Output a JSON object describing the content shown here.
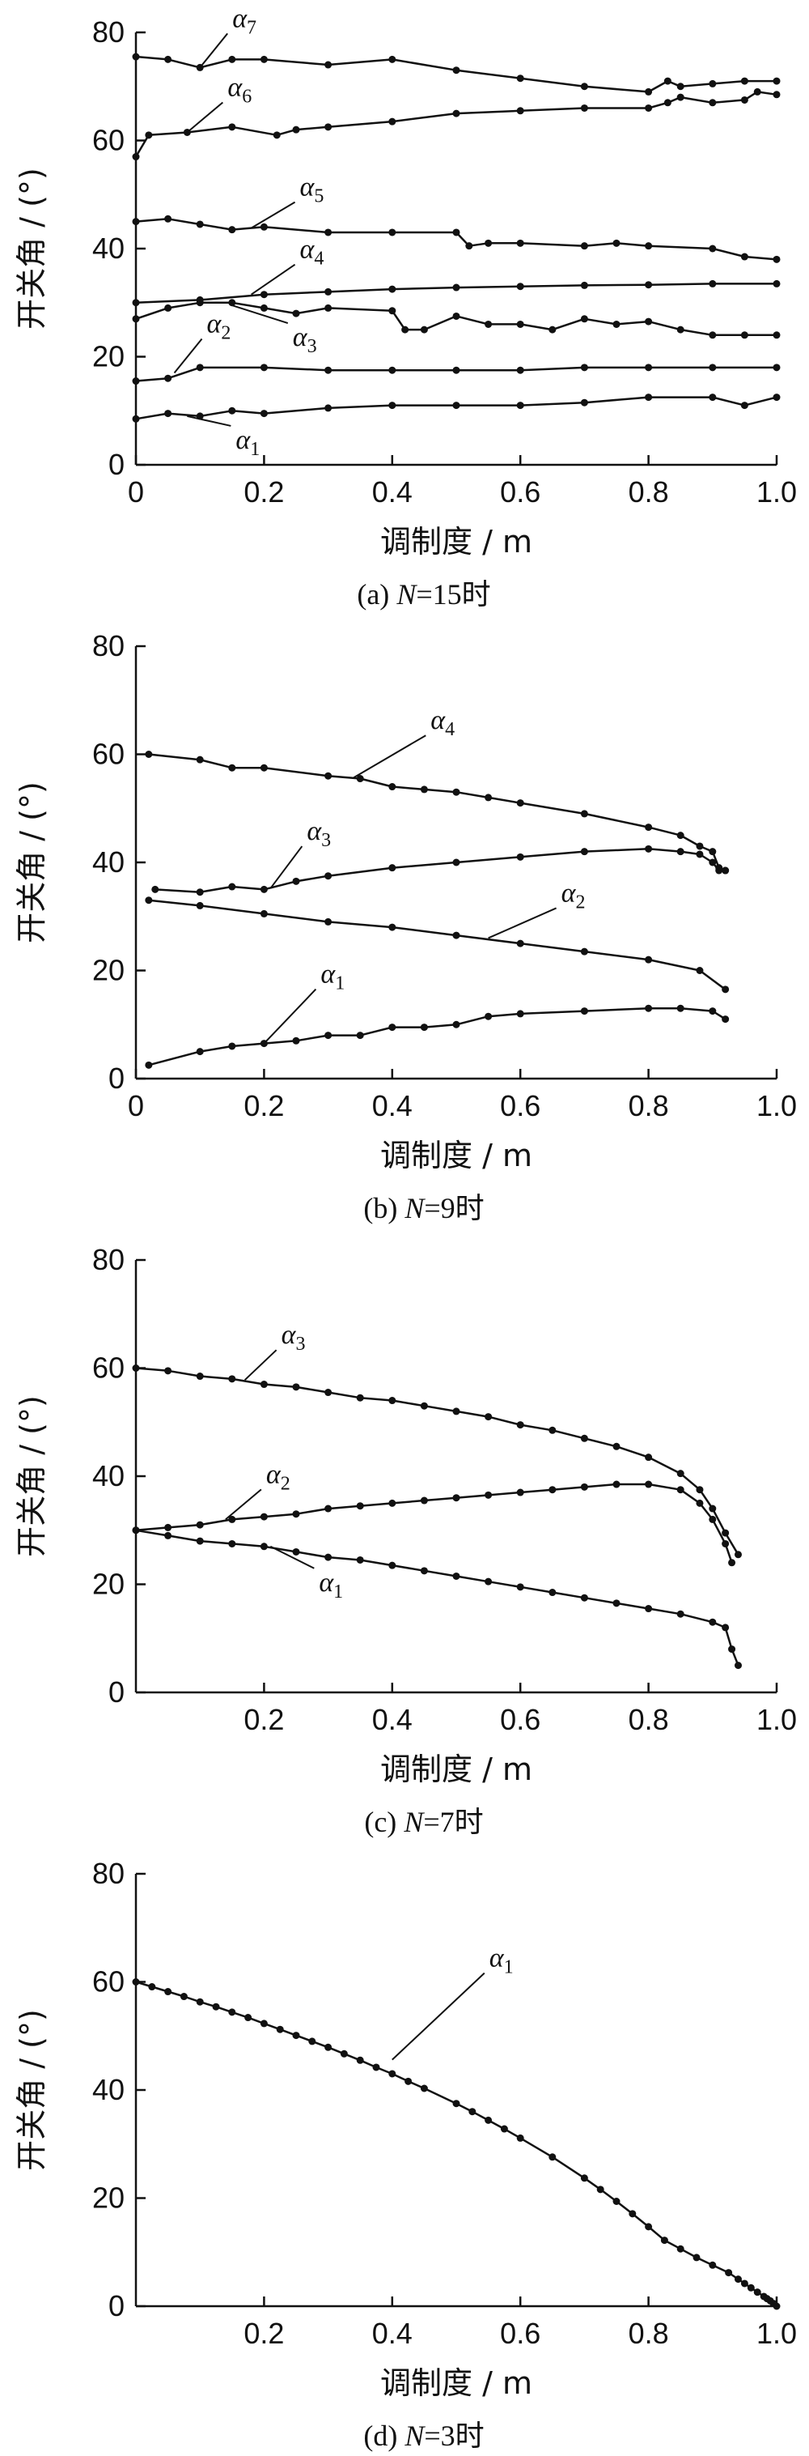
{
  "chart_data": [
    {
      "type": "line",
      "caption": {
        "prefix": "(a)",
        "var": "N",
        "suffix": "=15时"
      },
      "xlabel": "调制度 / m",
      "ylabel": "开关角 / (°)",
      "xlim": [
        0,
        1.0
      ],
      "ylim": [
        0,
        80
      ],
      "xticks": [
        "0",
        "0.2",
        "0.4",
        "0.6",
        "0.8",
        "1.0"
      ],
      "yticks": [
        "0",
        "20",
        "40",
        "60",
        "80"
      ],
      "series": [
        {
          "name": "α1",
          "x": [
            0.0,
            0.05,
            0.1,
            0.15,
            0.2,
            0.3,
            0.4,
            0.5,
            0.6,
            0.7,
            0.8,
            0.9,
            0.95,
            1.0
          ],
          "y": [
            8.5,
            9.5,
            9,
            10,
            9.5,
            10.5,
            11,
            11,
            11,
            11.5,
            12.5,
            12.5,
            11,
            12.5
          ]
        },
        {
          "name": "α2",
          "x": [
            0.0,
            0.05,
            0.1,
            0.2,
            0.3,
            0.4,
            0.5,
            0.6,
            0.7,
            0.8,
            0.9,
            1.0
          ],
          "y": [
            15.5,
            16,
            18,
            18,
            17.5,
            17.5,
            17.5,
            17.5,
            18,
            18,
            18,
            18
          ]
        },
        {
          "name": "α3",
          "x": [
            0.0,
            0.05,
            0.1,
            0.15,
            0.2,
            0.25,
            0.3,
            0.4,
            0.42,
            0.45,
            0.5,
            0.55,
            0.6,
            0.65,
            0.7,
            0.75,
            0.8,
            0.85,
            0.9,
            0.95,
            1.0
          ],
          "y": [
            27,
            29,
            30,
            30,
            29,
            28,
            29,
            28.5,
            25,
            25,
            27.5,
            26,
            26,
            25,
            27,
            26,
            26.5,
            25,
            24,
            24,
            24
          ]
        },
        {
          "name": "α4",
          "x": [
            0.0,
            0.1,
            0.2,
            0.3,
            0.4,
            0.5,
            0.6,
            0.7,
            0.8,
            0.9,
            1.0
          ],
          "y": [
            30,
            30.5,
            31.5,
            32,
            32.5,
            32.8,
            33,
            33.2,
            33.3,
            33.5,
            33.5
          ]
        },
        {
          "name": "α5",
          "x": [
            0.0,
            0.05,
            0.1,
            0.15,
            0.2,
            0.3,
            0.4,
            0.5,
            0.52,
            0.55,
            0.6,
            0.7,
            0.75,
            0.8,
            0.9,
            0.95,
            1.0
          ],
          "y": [
            45,
            45.5,
            44.5,
            43.5,
            44,
            43,
            43,
            43,
            40.5,
            41,
            41,
            40.5,
            41,
            40.5,
            40,
            38.5,
            38
          ]
        },
        {
          "name": "α6",
          "x": [
            0.0,
            0.02,
            0.08,
            0.15,
            0.22,
            0.25,
            0.3,
            0.4,
            0.5,
            0.6,
            0.7,
            0.8,
            0.83,
            0.85,
            0.9,
            0.95,
            0.97,
            1.0
          ],
          "y": [
            57,
            61,
            61.5,
            62.5,
            61,
            62,
            62.5,
            63.5,
            65,
            65.5,
            66,
            66,
            67,
            68,
            67,
            67.5,
            69,
            68.5
          ]
        },
        {
          "name": "α7",
          "x": [
            0.0,
            0.05,
            0.1,
            0.15,
            0.2,
            0.3,
            0.4,
            0.5,
            0.6,
            0.7,
            0.8,
            0.83,
            0.85,
            0.9,
            0.95,
            1.0
          ],
          "y": [
            75.5,
            75,
            73.5,
            75,
            75,
            74,
            75,
            73,
            71.5,
            70,
            69,
            71,
            70,
            70.5,
            71,
            71
          ]
        }
      ]
    },
    {
      "type": "line",
      "caption": {
        "prefix": "(b)",
        "var": "N",
        "suffix": "=9时"
      },
      "xlabel": "调制度 / m",
      "ylabel": "开关角 / (°)",
      "xlim": [
        0,
        1.0
      ],
      "ylim": [
        0,
        80
      ],
      "xticks": [
        "0",
        "0.2",
        "0.4",
        "0.6",
        "0.8",
        "1.0"
      ],
      "yticks": [
        "0",
        "20",
        "40",
        "60",
        "80"
      ],
      "series": [
        {
          "name": "α1",
          "x": [
            0.02,
            0.1,
            0.15,
            0.2,
            0.25,
            0.3,
            0.35,
            0.4,
            0.45,
            0.5,
            0.55,
            0.6,
            0.7,
            0.8,
            0.85,
            0.9,
            0.92
          ],
          "y": [
            2.5,
            5,
            6,
            6.5,
            7,
            8,
            8,
            9.5,
            9.5,
            10,
            11.5,
            12,
            12.5,
            13,
            13,
            12.5,
            11
          ]
        },
        {
          "name": "α2",
          "x": [
            0.02,
            0.1,
            0.2,
            0.3,
            0.4,
            0.5,
            0.6,
            0.7,
            0.8,
            0.88,
            0.92
          ],
          "y": [
            33,
            32,
            30.5,
            29,
            28,
            26.5,
            25,
            23.5,
            22,
            20,
            16.5
          ]
        },
        {
          "name": "α3",
          "x": [
            0.03,
            0.1,
            0.15,
            0.2,
            0.25,
            0.3,
            0.4,
            0.5,
            0.6,
            0.7,
            0.8,
            0.85,
            0.88,
            0.9,
            0.91,
            0.92
          ],
          "y": [
            35,
            34.5,
            35.5,
            35,
            36.5,
            37.5,
            39,
            40,
            41,
            42,
            42.5,
            42,
            41.5,
            40,
            38.5,
            38.5
          ]
        },
        {
          "name": "α4",
          "x": [
            0.02,
            0.1,
            0.15,
            0.2,
            0.3,
            0.35,
            0.4,
            0.45,
            0.5,
            0.55,
            0.6,
            0.7,
            0.8,
            0.85,
            0.88,
            0.9,
            0.91,
            0.92
          ],
          "y": [
            60,
            59,
            57.5,
            57.5,
            56,
            55.5,
            54,
            53.5,
            53,
            52,
            51,
            49,
            46.5,
            45,
            43,
            42,
            39,
            38.5
          ]
        }
      ]
    },
    {
      "type": "line",
      "caption": {
        "prefix": "(c)",
        "var": "N",
        "suffix": "=7时"
      },
      "xlabel": "调制度 / m",
      "ylabel": "开关角 / (°)",
      "xlim": [
        0,
        1.0
      ],
      "ylim": [
        0,
        80
      ],
      "xticks": [
        "0.2",
        "0.4",
        "0.6",
        "0.8",
        "1.0"
      ],
      "yticks": [
        "0",
        "20",
        "40",
        "60",
        "80"
      ],
      "series": [
        {
          "name": "α1",
          "x": [
            0.0,
            0.05,
            0.1,
            0.15,
            0.2,
            0.25,
            0.3,
            0.35,
            0.4,
            0.45,
            0.5,
            0.55,
            0.6,
            0.65,
            0.7,
            0.75,
            0.8,
            0.85,
            0.9,
            0.92,
            0.93,
            0.94
          ],
          "y": [
            30,
            29,
            28,
            27.5,
            27,
            26,
            25,
            24.5,
            23.5,
            22.5,
            21.5,
            20.5,
            19.5,
            18.5,
            17.5,
            16.5,
            15.5,
            14.5,
            13,
            12,
            8,
            5
          ]
        },
        {
          "name": "α2",
          "x": [
            0.0,
            0.05,
            0.1,
            0.15,
            0.2,
            0.25,
            0.3,
            0.35,
            0.4,
            0.45,
            0.5,
            0.55,
            0.6,
            0.65,
            0.7,
            0.75,
            0.8,
            0.85,
            0.88,
            0.9,
            0.92,
            0.93
          ],
          "y": [
            30,
            30.5,
            31,
            32,
            32.5,
            33,
            34,
            34.5,
            35,
            35.5,
            36,
            36.5,
            37,
            37.5,
            38,
            38.5,
            38.5,
            37.5,
            35,
            32,
            27.5,
            24
          ]
        },
        {
          "name": "α3",
          "x": [
            0.0,
            0.05,
            0.1,
            0.15,
            0.2,
            0.25,
            0.3,
            0.35,
            0.4,
            0.45,
            0.5,
            0.55,
            0.6,
            0.65,
            0.7,
            0.75,
            0.8,
            0.85,
            0.88,
            0.9,
            0.92,
            0.94
          ],
          "y": [
            60,
            59.5,
            58.5,
            58,
            57,
            56.5,
            55.5,
            54.5,
            54,
            53,
            52,
            51,
            49.5,
            48.5,
            47,
            45.5,
            43.5,
            40.5,
            37.5,
            34,
            29.5,
            25.5
          ]
        }
      ]
    },
    {
      "type": "line",
      "caption": {
        "prefix": "(d)",
        "var": "N",
        "suffix": "=3时"
      },
      "xlabel": "调制度 / m",
      "ylabel": "开关角 / (°)",
      "xlim": [
        0,
        1.0
      ],
      "ylim": [
        0,
        80
      ],
      "xticks": [
        "0.2",
        "0.4",
        "0.6",
        "0.8",
        "1.0"
      ],
      "yticks": [
        "0",
        "20",
        "40",
        "60",
        "80"
      ],
      "series": [
        {
          "name": "α1",
          "x": [
            0.0,
            0.025,
            0.05,
            0.075,
            0.1,
            0.125,
            0.15,
            0.175,
            0.2,
            0.225,
            0.25,
            0.275,
            0.3,
            0.325,
            0.35,
            0.375,
            0.4,
            0.425,
            0.45,
            0.5,
            0.525,
            0.55,
            0.575,
            0.6,
            0.65,
            0.7,
            0.725,
            0.75,
            0.775,
            0.8,
            0.825,
            0.85,
            0.875,
            0.9,
            0.925,
            0.94,
            0.95,
            0.96,
            0.97,
            0.98,
            0.985,
            0.99,
            0.995,
            1.0
          ],
          "y": [
            60,
            59.1,
            58.2,
            57.3,
            56.3,
            55.4,
            54.4,
            53.4,
            52.3,
            51.2,
            50.1,
            49.0,
            47.9,
            46.7,
            45.5,
            44.2,
            43.0,
            41.6,
            40.3,
            37.5,
            36.0,
            34.4,
            32.8,
            31.1,
            27.6,
            23.7,
            21.6,
            19.4,
            17.1,
            14.7,
            12.2,
            10.6,
            9.0,
            7.6,
            6.2,
            5.0,
            4.2,
            3.4,
            2.6,
            1.8,
            1.4,
            1.0,
            0.5,
            0.0
          ]
        }
      ]
    }
  ]
}
